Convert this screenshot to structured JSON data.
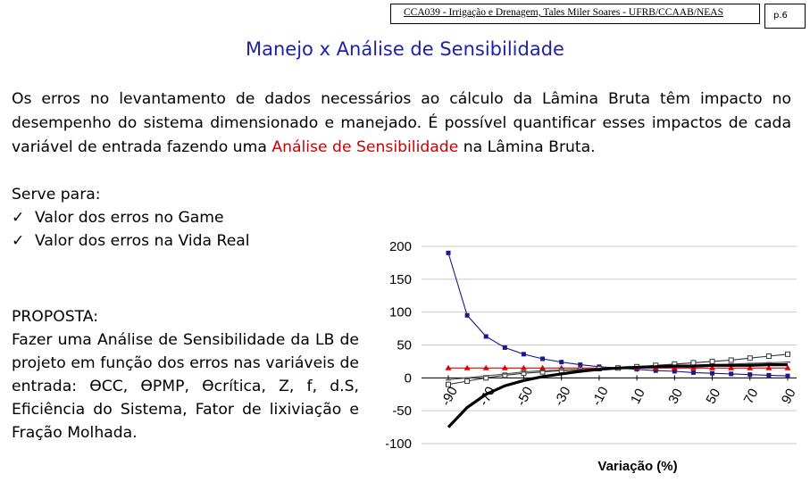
{
  "header": {
    "course": "CCA039 - Irrigação e Drenagem, Tales Miler Soares - UFRB/CCAAB/NEAS",
    "page": "p.6"
  },
  "title": "Manejo x Análise de Sensibilidade",
  "intro": {
    "before": "Os erros no levantamento de dados necessários ao cálculo da Lâmina Bruta têm impacto no desempenho do sistema dimensionado e manejado. É possível quantificar esses impactos de cada variável de entrada fazendo uma ",
    "highlight": "Análise de Sensibilidade",
    "after": " na Lâmina Bruta.",
    "highlight_color": "#cc0000"
  },
  "serve": {
    "heading": "Serve para:",
    "check_mark": "✓",
    "items": [
      "Valor dos erros no Game",
      "Valor dos erros na Vida Real"
    ]
  },
  "proposta": {
    "heading": "PROPOSTA:",
    "text": "Fazer uma Análise de Sensibilidade da LB de projeto em função dos erros nas variáveis de entrada: ϴCC, ϴPMP, ϴcrítica, Z, f, d.S, Eficiência do Sistema, Fator de lixiviação e Fração Molhada."
  },
  "colors": {
    "title": "#1f1fa6",
    "blue_series": "#1a1a8c",
    "red_series": "#e00000"
  },
  "chart_data": {
    "type": "line",
    "xlabel": "Variação (%)",
    "ylabel": "",
    "x": [
      -90,
      -80,
      -70,
      -60,
      -50,
      -40,
      -30,
      -20,
      -10,
      0,
      10,
      20,
      30,
      40,
      50,
      60,
      70,
      80,
      90
    ],
    "x_ticks": [
      "-90",
      "-70",
      "-50",
      "-30",
      "-10",
      "10",
      "30",
      "50",
      "70",
      "90"
    ],
    "y_ticks": [
      "200",
      "150",
      "100",
      "50",
      "0",
      "-50",
      "-100"
    ],
    "ylim": [
      -100,
      200
    ],
    "xlim": [
      -90,
      90
    ],
    "grid": "horizontal",
    "series": [
      {
        "marker": "square-filled",
        "color": "#1a1a8c",
        "values": [
          190,
          95,
          63,
          46,
          36,
          29,
          24,
          20,
          17,
          15,
          13,
          11,
          10,
          8,
          7,
          6,
          5,
          4,
          3
        ]
      },
      {
        "marker": "triangle",
        "color": "#e00000",
        "values": [
          15,
          15,
          15,
          15,
          15,
          15,
          15,
          15,
          15,
          15,
          15,
          15,
          15,
          15,
          15,
          15,
          15,
          15,
          15
        ]
      },
      {
        "marker": "square-open",
        "color": "#333333",
        "values": [
          -10,
          -5,
          0,
          4,
          7,
          9,
          11,
          12,
          14,
          15,
          17,
          19,
          21,
          23,
          25,
          27,
          30,
          33,
          36
        ]
      },
      {
        "marker": "dash",
        "color": "#555555",
        "values": [
          -3,
          0,
          3,
          6,
          9,
          11,
          12,
          13,
          14,
          15,
          16,
          17,
          18,
          19,
          20,
          21,
          22,
          23,
          24
        ]
      },
      {
        "marker": "none",
        "color": "#000000",
        "thick": true,
        "values": [
          -75,
          -45,
          -25,
          -12,
          -4,
          2,
          6,
          10,
          13,
          15,
          16,
          17,
          18,
          18,
          19,
          19,
          19,
          20,
          20
        ]
      }
    ]
  }
}
